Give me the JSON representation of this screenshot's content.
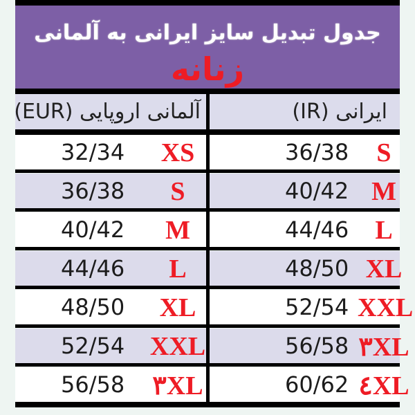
{
  "title": "جدول تبدیل سایز ایرانی به آلمانی",
  "subtitle": "زنانه",
  "headers": {
    "left": "آلمانی اروپایی (EUR)",
    "right": "ایرانی (IR)"
  },
  "colors": {
    "banner": "#7d5fa6",
    "accent_red": "#ee1c25",
    "row_alt": "#dcdbeb"
  },
  "rows": [
    {
      "eur_size": "XS",
      "eur_value": "32/34",
      "ir_size": "S",
      "ir_value": "36/38"
    },
    {
      "eur_size": "S",
      "eur_value": "36/38",
      "ir_size": "M",
      "ir_value": "40/42"
    },
    {
      "eur_size": "M",
      "eur_value": "40/42",
      "ir_size": "L",
      "ir_value": "44/46"
    },
    {
      "eur_size": "L",
      "eur_value": "44/46",
      "ir_size": "XL",
      "ir_value": "48/50"
    },
    {
      "eur_size": "XL",
      "eur_value": "48/50",
      "ir_size": "XXL",
      "ir_value": "52/54"
    },
    {
      "eur_size": "XXL",
      "eur_value": "52/54",
      "ir_size": "٣XL",
      "ir_value": "56/58"
    },
    {
      "eur_size": "٣XL",
      "eur_value": "56/58",
      "ir_size": "٤XL",
      "ir_value": "60/62"
    }
  ]
}
